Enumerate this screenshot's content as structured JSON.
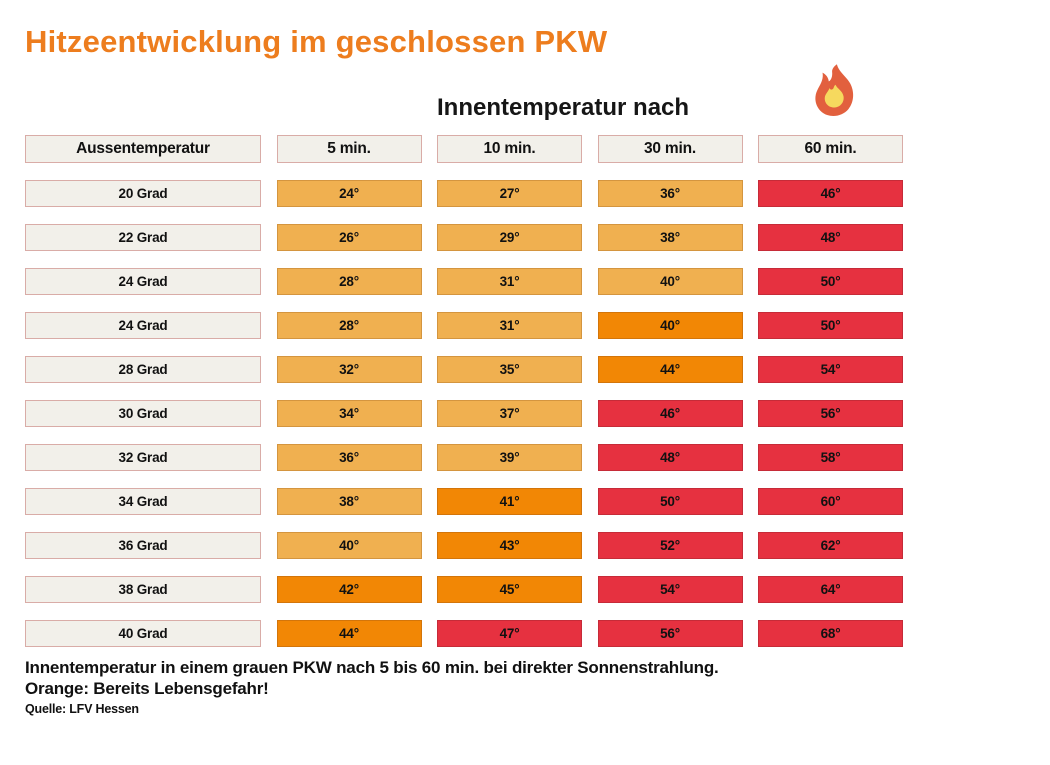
{
  "page": {
    "title": "Hitzeentwicklung im geschlossen PKW",
    "subtitle": "Innentemperatur nach",
    "footer_line1": "Innentemperatur in einem grauen PKW nach 5 bis 60 min. bei direkter Sonnenstrahlung.",
    "footer_line2": "Orange: Bereits Lebensgefahr!",
    "source": "Quelle: LFV Hessen"
  },
  "icons": {
    "flame": "fire-icon"
  },
  "colors": {
    "title_orange": "#ED7D1E",
    "warm": "#F0B050",
    "hot": "#F28705",
    "danger": "#E63140",
    "label_bg": "#F2F0EA",
    "label_border": "#D9ACA7",
    "flame_outer": "#E2603E",
    "flame_inner": "#F6D95E"
  },
  "chart_data": {
    "type": "table",
    "title": "Hitzeentwicklung im geschlossen PKW",
    "subtitle": "Innentemperatur nach",
    "columns": [
      "Aussentemperatur",
      "5 min.",
      "10 min.",
      "30 min.",
      "60 min."
    ],
    "legend_note": "Orange: Bereits Lebensgefahr!",
    "source": "Quelle: LFV Hessen",
    "rows": [
      {
        "label": "20 Grad",
        "values": [
          "24°",
          "27°",
          "36°",
          "46°"
        ],
        "levels": [
          "warm",
          "warm",
          "warm",
          "danger"
        ]
      },
      {
        "label": "22 Grad",
        "values": [
          "26°",
          "29°",
          "38°",
          "48°"
        ],
        "levels": [
          "warm",
          "warm",
          "warm",
          "danger"
        ]
      },
      {
        "label": "24 Grad",
        "values": [
          "28°",
          "31°",
          "40°",
          "50°"
        ],
        "levels": [
          "warm",
          "warm",
          "warm",
          "danger"
        ]
      },
      {
        "label": "24 Grad",
        "values": [
          "28°",
          "31°",
          "40°",
          "50°"
        ],
        "levels": [
          "warm",
          "warm",
          "hot",
          "danger"
        ]
      },
      {
        "label": "28 Grad",
        "values": [
          "32°",
          "35°",
          "44°",
          "54°"
        ],
        "levels": [
          "warm",
          "warm",
          "hot",
          "danger"
        ]
      },
      {
        "label": "30 Grad",
        "values": [
          "34°",
          "37°",
          "46°",
          "56°"
        ],
        "levels": [
          "warm",
          "warm",
          "danger",
          "danger"
        ]
      },
      {
        "label": "32 Grad",
        "values": [
          "36°",
          "39°",
          "48°",
          "58°"
        ],
        "levels": [
          "warm",
          "warm",
          "danger",
          "danger"
        ]
      },
      {
        "label": "34 Grad",
        "values": [
          "38°",
          "41°",
          "50°",
          "60°"
        ],
        "levels": [
          "warm",
          "hot",
          "danger",
          "danger"
        ]
      },
      {
        "label": "36 Grad",
        "values": [
          "40°",
          "43°",
          "52°",
          "62°"
        ],
        "levels": [
          "warm",
          "hot",
          "danger",
          "danger"
        ]
      },
      {
        "label": "38 Grad",
        "values": [
          "42°",
          "45°",
          "54°",
          "64°"
        ],
        "levels": [
          "hot",
          "hot",
          "danger",
          "danger"
        ]
      },
      {
        "label": "40 Grad",
        "values": [
          "44°",
          "47°",
          "56°",
          "68°"
        ],
        "levels": [
          "hot",
          "danger",
          "danger",
          "danger"
        ]
      }
    ]
  }
}
